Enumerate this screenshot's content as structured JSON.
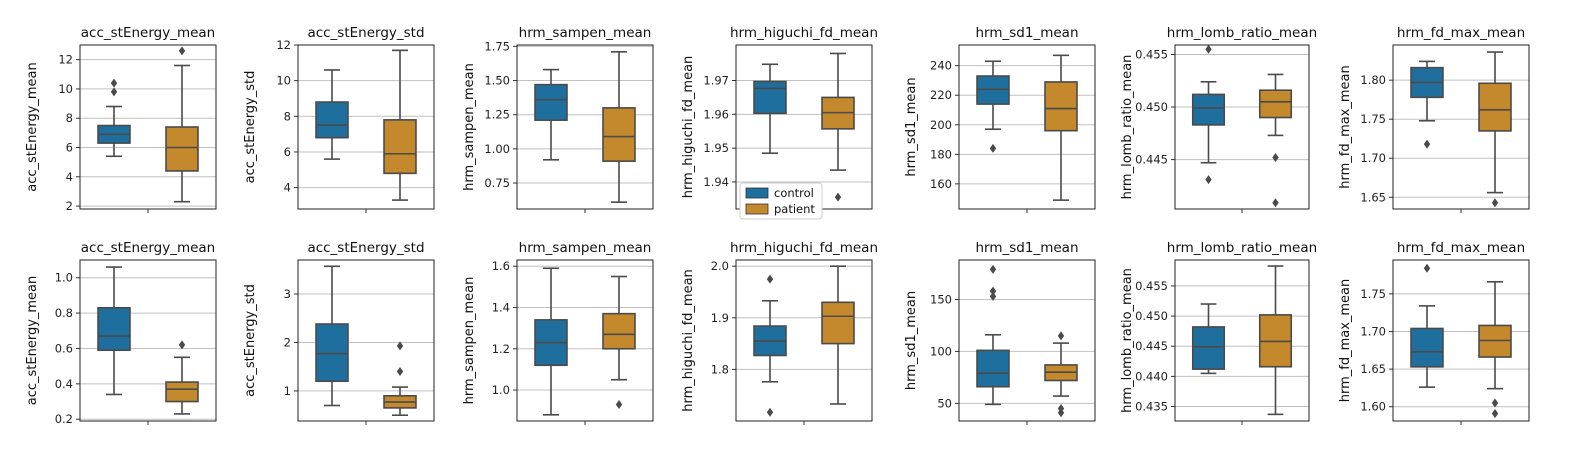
{
  "colors": {
    "control": "#1f6f9e",
    "patient": "#c4892c",
    "whisker": "#4a4a4a",
    "grid": "#c0c0c0"
  },
  "legend": {
    "control_label": "control",
    "patient_label": "patient"
  },
  "chart_data": [
    {
      "type": "box",
      "title": "acc_stEnergy_mean",
      "ylabel": "acc_stEnergy_mean",
      "xlabel": "",
      "grid": "horizontal",
      "ylim": [
        1.8,
        13
      ],
      "yticks": [
        2,
        4,
        6,
        8,
        10,
        12
      ],
      "tick_labels": [
        "2",
        "4",
        "6",
        "8",
        "10",
        "12"
      ],
      "series": [
        {
          "name": "control",
          "whislo": 5.4,
          "q1": 6.3,
          "med": 6.9,
          "q3": 7.5,
          "whishi": 8.8,
          "fliers": [
            9.8,
            10.4
          ]
        },
        {
          "name": "patient",
          "whislo": 2.3,
          "q1": 4.4,
          "med": 6.0,
          "q3": 7.4,
          "whishi": 11.6,
          "fliers": [
            12.6
          ]
        }
      ]
    },
    {
      "type": "box",
      "title": "acc_stEnergy_std",
      "ylabel": "acc_stEnergy_std",
      "xlabel": "",
      "grid": "horizontal",
      "ylim": [
        2.8,
        12
      ],
      "yticks": [
        4,
        6,
        8,
        10,
        12
      ],
      "tick_labels": [
        "4",
        "6",
        "8",
        "10",
        "12"
      ],
      "series": [
        {
          "name": "control",
          "whislo": 5.6,
          "q1": 6.8,
          "med": 7.5,
          "q3": 8.8,
          "whishi": 10.6,
          "fliers": []
        },
        {
          "name": "patient",
          "whislo": 3.3,
          "q1": 4.8,
          "med": 5.9,
          "q3": 7.8,
          "whishi": 11.7,
          "fliers": []
        }
      ]
    },
    {
      "type": "box",
      "title": "hrm_sampen_mean",
      "ylabel": "hrm_sampen_mean",
      "xlabel": "",
      "grid": "horizontal",
      "ylim": [
        0.56,
        1.76
      ],
      "yticks": [
        0.75,
        1.0,
        1.25,
        1.5,
        1.75
      ],
      "tick_labels": [
        "0.75",
        "1.00",
        "1.25",
        "1.50",
        "1.75"
      ],
      "series": [
        {
          "name": "control",
          "whislo": 0.92,
          "q1": 1.21,
          "med": 1.36,
          "q3": 1.47,
          "whishi": 1.58,
          "fliers": []
        },
        {
          "name": "patient",
          "whislo": 0.61,
          "q1": 0.91,
          "med": 1.09,
          "q3": 1.3,
          "whishi": 1.71,
          "fliers": []
        }
      ]
    },
    {
      "type": "box",
      "title": "hrm_higuchi_fd_mean",
      "ylabel": "hrm_higuchi_fd_mean",
      "xlabel": "",
      "grid": "horizontal",
      "ylim": [
        1.932,
        1.9805
      ],
      "yticks": [
        1.94,
        1.95,
        1.96,
        1.97
      ],
      "tick_labels": [
        "1.94",
        "1.95",
        "1.96",
        "1.97"
      ],
      "series": [
        {
          "name": "control",
          "whislo": 1.9485,
          "q1": 1.9603,
          "med": 1.9677,
          "q3": 1.9697,
          "whishi": 1.9748,
          "fliers": []
        },
        {
          "name": "patient",
          "whislo": 1.9435,
          "q1": 1.9557,
          "med": 1.9605,
          "q3": 1.965,
          "whishi": 1.978,
          "fliers": [
            1.9355
          ]
        }
      ]
    },
    {
      "type": "box",
      "title": "hrm_sd1_mean",
      "ylabel": "hrm_sd1_mean",
      "xlabel": "",
      "grid": "horizontal",
      "ylim": [
        143,
        254
      ],
      "yticks": [
        160,
        180,
        200,
        220,
        240
      ],
      "tick_labels": [
        "160",
        "180",
        "200",
        "220",
        "240"
      ],
      "series": [
        {
          "name": "control",
          "whislo": 197,
          "q1": 214,
          "med": 224,
          "q3": 233,
          "whishi": 243,
          "fliers": [
            184
          ]
        },
        {
          "name": "patient",
          "whislo": 149,
          "q1": 196,
          "med": 211,
          "q3": 229,
          "whishi": 247,
          "fliers": []
        }
      ]
    },
    {
      "type": "box",
      "title": "hrm_lomb_ratio_mean",
      "ylabel": "hrm_lomb_ratio_mean",
      "xlabel": "",
      "grid": "horizontal",
      "ylim": [
        0.4403,
        0.4559
      ],
      "yticks": [
        0.445,
        0.45,
        0.455
      ],
      "tick_labels": [
        "0.445",
        "0.450",
        "0.455"
      ],
      "series": [
        {
          "name": "control",
          "whislo": 0.4447,
          "q1": 0.4483,
          "med": 0.4499,
          "q3": 0.4512,
          "whishi": 0.4524,
          "fliers": [
            0.4431,
            0.4555
          ]
        },
        {
          "name": "patient",
          "whislo": 0.4473,
          "q1": 0.449,
          "med": 0.4505,
          "q3": 0.4516,
          "whishi": 0.4531,
          "fliers": [
            0.4452,
            0.4409
          ]
        }
      ]
    },
    {
      "type": "box",
      "title": "hrm_fd_max_mean",
      "ylabel": "hrm_fd_max_mean",
      "xlabel": "",
      "grid": "horizontal",
      "ylim": [
        1.635,
        1.845
      ],
      "yticks": [
        1.65,
        1.7,
        1.75,
        1.8
      ],
      "tick_labels": [
        "1.65",
        "1.70",
        "1.75",
        "1.80"
      ],
      "series": [
        {
          "name": "control",
          "whislo": 1.748,
          "q1": 1.778,
          "med": 1.797,
          "q3": 1.816,
          "whishi": 1.824,
          "fliers": [
            1.718
          ]
        },
        {
          "name": "patient",
          "whislo": 1.656,
          "q1": 1.735,
          "med": 1.762,
          "q3": 1.796,
          "whishi": 1.836,
          "fliers": [
            1.643
          ]
        }
      ]
    },
    {
      "type": "box",
      "title": "acc_stEnergy_mean",
      "ylabel": "acc_stEnergy_mean",
      "xlabel": "",
      "grid": "horizontal",
      "ylim": [
        0.19,
        1.1
      ],
      "yticks": [
        0.2,
        0.4,
        0.6,
        0.8,
        1.0
      ],
      "tick_labels": [
        "0.2",
        "0.4",
        "0.6",
        "0.8",
        "1.0"
      ],
      "series": [
        {
          "name": "control",
          "whislo": 0.34,
          "q1": 0.59,
          "med": 0.67,
          "q3": 0.83,
          "whishi": 1.06,
          "fliers": []
        },
        {
          "name": "patient",
          "whislo": 0.23,
          "q1": 0.3,
          "med": 0.37,
          "q3": 0.41,
          "whishi": 0.55,
          "fliers": [
            0.62
          ]
        }
      ]
    },
    {
      "type": "box",
      "title": "acc_stEnergy_std",
      "ylabel": "acc_stEnergy_std",
      "xlabel": "",
      "grid": "horizontal",
      "ylim": [
        0.38,
        3.7
      ],
      "yticks": [
        1,
        2,
        3
      ],
      "tick_labels": [
        "1",
        "2",
        "3"
      ],
      "series": [
        {
          "name": "control",
          "whislo": 0.7,
          "q1": 1.2,
          "med": 1.77,
          "q3": 2.38,
          "whishi": 3.57,
          "fliers": []
        },
        {
          "name": "patient",
          "whislo": 0.5,
          "q1": 0.65,
          "med": 0.77,
          "q3": 0.9,
          "whishi": 1.08,
          "fliers": [
            1.4,
            1.93
          ]
        }
      ]
    },
    {
      "type": "box",
      "title": "hrm_sampen_mean",
      "ylabel": "hrm_sampen_mean",
      "xlabel": "",
      "grid": "horizontal",
      "ylim": [
        0.85,
        1.63
      ],
      "yticks": [
        1.0,
        1.2,
        1.4,
        1.6
      ],
      "tick_labels": [
        "1.0",
        "1.2",
        "1.4",
        "1.6"
      ],
      "series": [
        {
          "name": "control",
          "whislo": 0.88,
          "q1": 1.12,
          "med": 1.23,
          "q3": 1.34,
          "whishi": 1.59,
          "fliers": []
        },
        {
          "name": "patient",
          "whislo": 1.05,
          "q1": 1.2,
          "med": 1.27,
          "q3": 1.37,
          "whishi": 1.55,
          "fliers": [
            0.93
          ]
        }
      ]
    },
    {
      "type": "box",
      "title": "hrm_higuchi_fd_mean",
      "ylabel": "hrm_higuchi_fd_mean",
      "xlabel": "",
      "grid": "horizontal",
      "ylim": [
        1.7,
        2.012
      ],
      "yticks": [
        1.8,
        1.9,
        2.0
      ],
      "tick_labels": [
        "1.8",
        "1.9",
        "2.0"
      ],
      "series": [
        {
          "name": "control",
          "whislo": 1.776,
          "q1": 1.827,
          "med": 1.855,
          "q3": 1.884,
          "whishi": 1.933,
          "fliers": [
            1.975,
            1.717
          ]
        },
        {
          "name": "patient",
          "whislo": 1.733,
          "q1": 1.85,
          "med": 1.903,
          "q3": 1.93,
          "whishi": 2.0,
          "fliers": []
        }
      ]
    },
    {
      "type": "box",
      "title": "hrm_sd1_mean",
      "ylabel": "hrm_sd1_mean",
      "xlabel": "",
      "grid": "horizontal",
      "ylim": [
        33,
        188
      ],
      "yticks": [
        50,
        100,
        150
      ],
      "tick_labels": [
        "50",
        "100",
        "150"
      ],
      "series": [
        {
          "name": "control",
          "whislo": 49,
          "q1": 66,
          "med": 79,
          "q3": 101,
          "whishi": 116,
          "fliers": [
            153,
            158,
            179
          ]
        },
        {
          "name": "patient",
          "whislo": 57,
          "q1": 72,
          "med": 80,
          "q3": 87,
          "whishi": 108,
          "fliers": [
            115,
            41,
            45
          ]
        }
      ]
    },
    {
      "type": "box",
      "title": "hrm_lomb_ratio_mean",
      "ylabel": "hrm_lomb_ratio_mean",
      "xlabel": "",
      "grid": "horizontal",
      "ylim": [
        0.4326,
        0.4593
      ],
      "yticks": [
        0.435,
        0.44,
        0.445,
        0.45,
        0.455
      ],
      "tick_labels": [
        "0.435",
        "0.440",
        "0.445",
        "0.450",
        "0.455"
      ],
      "series": [
        {
          "name": "control",
          "whislo": 0.4405,
          "q1": 0.4412,
          "med": 0.4449,
          "q3": 0.4482,
          "whishi": 0.452,
          "fliers": []
        },
        {
          "name": "patient",
          "whislo": 0.4337,
          "q1": 0.4416,
          "med": 0.4458,
          "q3": 0.4502,
          "whishi": 0.4583,
          "fliers": []
        }
      ]
    },
    {
      "type": "box",
      "title": "hrm_fd_max_mean",
      "ylabel": "hrm_fd_max_mean",
      "xlabel": "",
      "grid": "horizontal",
      "ylim": [
        1.581,
        1.795
      ],
      "yticks": [
        1.6,
        1.65,
        1.7,
        1.75
      ],
      "tick_labels": [
        "1.60",
        "1.65",
        "1.70",
        "1.75"
      ],
      "series": [
        {
          "name": "control",
          "whislo": 1.626,
          "q1": 1.653,
          "med": 1.673,
          "q3": 1.704,
          "whishi": 1.734,
          "fliers": [
            1.784
          ]
        },
        {
          "name": "patient",
          "whislo": 1.624,
          "q1": 1.666,
          "med": 1.688,
          "q3": 1.708,
          "whishi": 1.766,
          "fliers": [
            1.605,
            1.591
          ]
        }
      ]
    }
  ]
}
